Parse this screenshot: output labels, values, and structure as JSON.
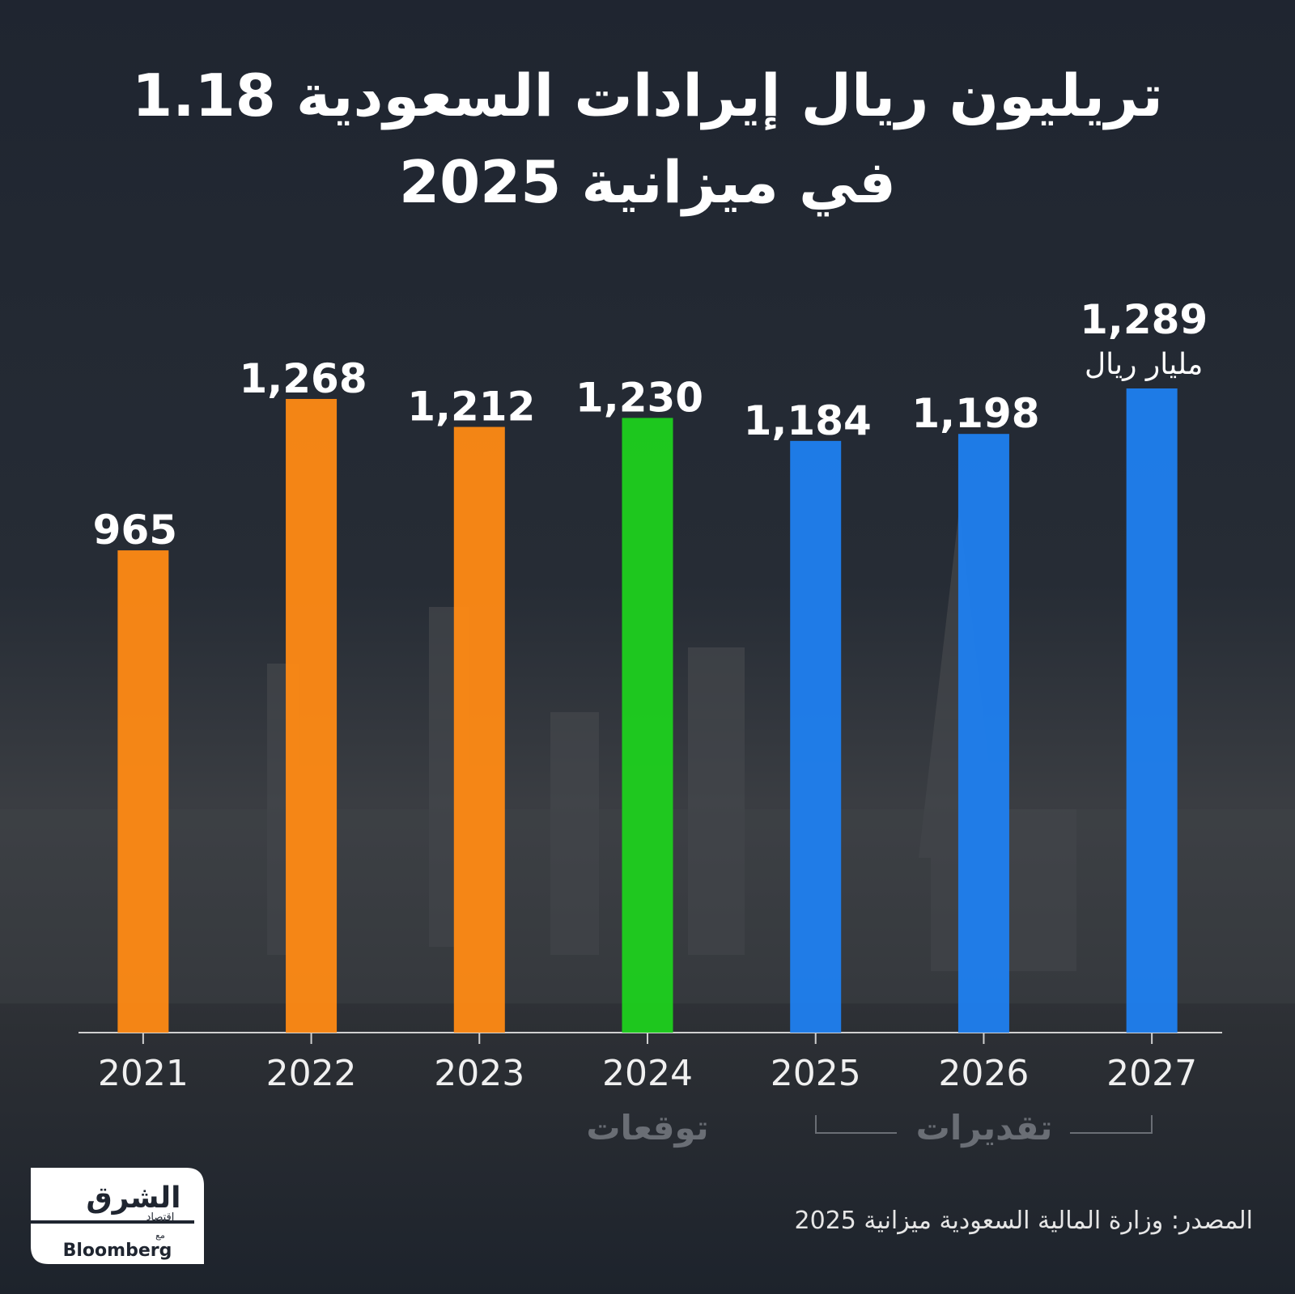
{
  "chart_data": {
    "type": "bar",
    "title": [
      "1.18 تريليون ريال إيرادات السعودية",
      "في ميزانية 2025"
    ],
    "categories": [
      "2021",
      "2022",
      "2023",
      "2024",
      "2025",
      "2026",
      "2027"
    ],
    "values": [
      965,
      1268,
      1212,
      1230,
      1184,
      1198,
      1289
    ],
    "value_labels": [
      "965",
      "1,268",
      "1,212",
      "1,230",
      "1,184",
      "1,198",
      "1,289"
    ],
    "colors": [
      "#ff8a14",
      "#ff8a14",
      "#ff8a14",
      "#1ed01e",
      "#1f7ff0",
      "#1f7ff0",
      "#1f7ff0"
    ],
    "unit": "مليار ريال",
    "annotations": {
      "forecast": "توقعات",
      "estimates": "تقديرات"
    },
    "source": "المصدر: وزارة المالية السعودية ميزانية 2025",
    "logo": {
      "brand": "الشرق",
      "sub": "اقتصاد",
      "with": "مع",
      "partner": "Bloomberg"
    }
  }
}
